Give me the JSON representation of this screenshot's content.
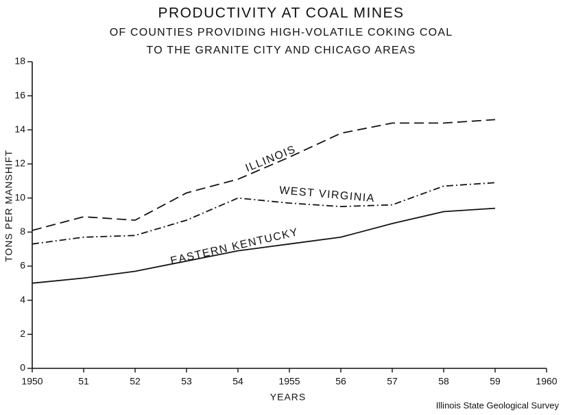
{
  "chart_data": {
    "type": "line",
    "title": "PRODUCTIVITY AT COAL MINES",
    "subtitle": [
      "OF COUNTIES PROVIDING HIGH-VOLATILE COKING COAL",
      "TO THE GRANITE CITY AND CHICAGO AREAS"
    ],
    "x_label": "YEARS",
    "y_label": "TONS PER MANSHIFT",
    "source": "Illinois State Geological Survey",
    "x": [
      1950,
      1951,
      1952,
      1953,
      1954,
      1955,
      1956,
      1957,
      1958,
      1959
    ],
    "series": [
      {
        "name": "ILLINOIS",
        "color": "#111111",
        "style": "dashed",
        "values": [
          8.1,
          8.9,
          8.7,
          10.3,
          11.1,
          12.4,
          13.8,
          14.4,
          14.4,
          14.6
        ]
      },
      {
        "name": "WEST VIRGINIA",
        "color": "#111111",
        "style": "dash-dot",
        "values": [
          7.3,
          7.7,
          7.8,
          8.7,
          10.0,
          9.7,
          9.5,
          9.6,
          10.7,
          10.9
        ]
      },
      {
        "name": "EASTERN KENTUCKY",
        "color": "#111111",
        "style": "solid",
        "values": [
          5.0,
          5.3,
          5.7,
          6.3,
          6.9,
          7.3,
          7.7,
          8.5,
          9.2,
          9.4
        ]
      }
    ],
    "xlim": [
      1950,
      1960
    ],
    "xticks": [
      1950,
      {
        "value": 1951,
        "label": "51"
      },
      {
        "value": 1952,
        "label": "52"
      },
      {
        "value": 1953,
        "label": "53"
      },
      {
        "value": 1954,
        "label": "54"
      },
      1955,
      {
        "value": 1956,
        "label": "56"
      },
      {
        "value": 1957,
        "label": "57"
      },
      {
        "value": 1958,
        "label": "58"
      },
      {
        "value": 1959,
        "label": "59"
      },
      1960
    ],
    "ylim": [
      0,
      18
    ],
    "yticks": [
      0,
      2,
      4,
      6,
      8,
      10,
      12,
      14,
      16,
      18
    ],
    "grid": false
  }
}
